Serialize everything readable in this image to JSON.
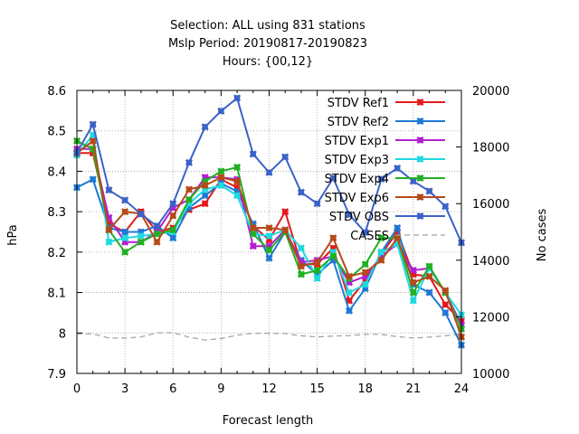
{
  "chart_data": {
    "type": "line",
    "title_lines": [
      "Selection: ALL using   831 stations",
      "Mslp   Period: 20190817-20190823",
      "Hours: {00,12}"
    ],
    "xlabel": "Forecast length",
    "ylabel": "hPa",
    "y2label": "No cases",
    "xlim": [
      0,
      24
    ],
    "ylim": [
      7.9,
      8.6
    ],
    "y2lim": [
      10000,
      20000
    ],
    "x_ticks": [
      0,
      3,
      6,
      9,
      12,
      15,
      18,
      21,
      24
    ],
    "y_ticks": [
      "7.9",
      "8",
      "8.1",
      "8.2",
      "8.3",
      "8.4",
      "8.5",
      "8.6"
    ],
    "y2_ticks": [
      "10000",
      "12000",
      "14000",
      "16000",
      "18000",
      "20000"
    ],
    "grid": true,
    "legend_position": "top-right",
    "x": [
      0,
      1,
      2,
      3,
      4,
      5,
      6,
      7,
      8,
      9,
      10,
      11,
      12,
      13,
      14,
      15,
      16,
      17,
      18,
      19,
      20,
      21,
      22,
      23,
      24
    ],
    "series": [
      {
        "name": "STDV Ref1",
        "color": "#e41a1c",
        "marker": "x",
        "values": [
          8.445,
          8.445,
          8.27,
          8.25,
          8.3,
          8.25,
          8.26,
          8.305,
          8.32,
          8.38,
          8.36,
          8.265,
          8.23,
          8.3,
          8.17,
          8.17,
          8.21,
          8.08,
          8.13,
          8.195,
          8.25,
          8.145,
          8.14,
          8.07,
          8.03
        ]
      },
      {
        "name": "STDV Ref2",
        "color": "#1f78d4",
        "marker": "x",
        "values": [
          8.36,
          8.38,
          8.26,
          8.25,
          8.25,
          8.265,
          8.235,
          8.31,
          8.34,
          8.37,
          8.35,
          8.27,
          8.185,
          8.25,
          8.18,
          8.145,
          8.18,
          8.055,
          8.11,
          8.2,
          8.26,
          8.12,
          8.1,
          8.05,
          7.97
        ]
      },
      {
        "name": "STDV Exp1",
        "color": "#b31fd0",
        "marker": "x",
        "values": [
          8.455,
          8.455,
          8.285,
          8.225,
          8.225,
          8.25,
          8.31,
          8.33,
          8.385,
          8.385,
          8.38,
          8.215,
          8.215,
          8.255,
          8.175,
          8.18,
          8.19,
          8.125,
          8.14,
          8.19,
          8.22,
          8.155,
          8.16,
          8.1,
          8.02
        ]
      },
      {
        "name": "STDV Exp3",
        "color": "#1fd8e0",
        "marker": "x",
        "values": [
          8.44,
          8.49,
          8.225,
          8.235,
          8.24,
          8.245,
          8.25,
          8.32,
          8.355,
          8.365,
          8.34,
          8.245,
          8.24,
          8.255,
          8.21,
          8.135,
          8.2,
          8.1,
          8.12,
          8.2,
          8.22,
          8.08,
          8.16,
          8.1,
          8.045
        ]
      },
      {
        "name": "STDV Exp4",
        "color": "#22b022",
        "marker": "x",
        "values": [
          8.475,
          8.455,
          8.255,
          8.2,
          8.225,
          8.245,
          8.255,
          8.33,
          8.375,
          8.4,
          8.41,
          8.245,
          8.205,
          8.25,
          8.145,
          8.155,
          8.19,
          8.135,
          8.17,
          8.235,
          8.235,
          8.1,
          8.165,
          8.1,
          8.01
        ]
      },
      {
        "name": "STDV Exp6",
        "color": "#b44a1a",
        "marker": "x",
        "values": [
          8.445,
          8.475,
          8.255,
          8.3,
          8.295,
          8.225,
          8.29,
          8.355,
          8.365,
          8.385,
          8.375,
          8.26,
          8.26,
          8.255,
          8.165,
          8.175,
          8.235,
          8.14,
          8.15,
          8.18,
          8.235,
          8.125,
          8.14,
          8.105,
          7.99
        ]
      },
      {
        "name": "STDV OBS",
        "color": "#3b62c8",
        "marker": "x",
        "axis": "y2",
        "values": [
          17800,
          18800,
          16480,
          16120,
          15630,
          15200,
          16000,
          17450,
          18710,
          19270,
          19730,
          17750,
          17100,
          17650,
          16400,
          16000,
          16900,
          15610,
          14980,
          16870,
          17250,
          16790,
          16440,
          15900,
          14620
        ]
      },
      {
        "name": "CASES",
        "color": "#a0a0a0",
        "dashed": true,
        "axis": "y2",
        "values": [
          11400,
          11400,
          11250,
          11250,
          11290,
          11430,
          11440,
          11280,
          11180,
          11230,
          11350,
          11420,
          11420,
          11410,
          11330,
          11290,
          11320,
          11340,
          11380,
          11380,
          11300,
          11250,
          11280,
          11330,
          11400
        ]
      }
    ]
  }
}
